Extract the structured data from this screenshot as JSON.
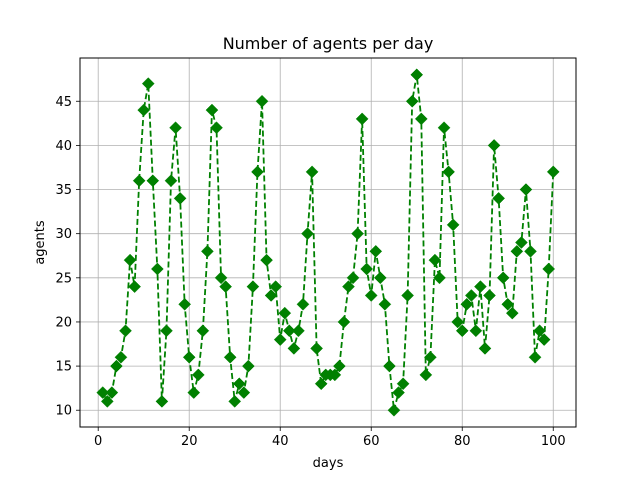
{
  "chart_data": {
    "type": "line",
    "title": "Number of agents per day",
    "xlabel": "days",
    "ylabel": "agents",
    "xlim": [
      -4,
      105
    ],
    "ylim": [
      8.1,
      49.9
    ],
    "grid": true,
    "line_style": "dashed",
    "marker": "diamond",
    "colors": {
      "series": "#008000",
      "grid": "#b0b0b0",
      "axes": "#000000"
    },
    "x_ticks": [
      0,
      20,
      40,
      60,
      80,
      100
    ],
    "y_ticks": [
      10,
      15,
      20,
      25,
      30,
      35,
      40,
      45
    ],
    "x_tick_labels": [
      "0",
      "20",
      "40",
      "60",
      "80",
      "100"
    ],
    "y_tick_labels": [
      "10",
      "15",
      "20",
      "25",
      "30",
      "35",
      "40",
      "45"
    ],
    "series": [
      {
        "x": [
          1,
          2,
          3,
          4,
          5,
          6,
          7,
          8,
          9,
          10,
          11,
          12,
          13,
          14,
          15,
          16,
          17,
          18,
          19,
          20,
          21,
          22,
          23,
          24,
          25,
          26,
          27,
          28,
          29,
          30,
          31,
          32,
          33,
          34,
          35,
          36,
          37,
          38,
          39,
          40,
          41,
          42,
          43,
          44,
          45,
          46,
          47,
          48,
          49,
          50,
          51,
          52,
          53,
          54,
          55,
          56,
          57,
          58,
          59,
          60,
          61,
          62,
          63,
          64,
          65,
          66,
          67,
          68,
          69,
          70,
          71,
          72,
          73,
          74,
          75,
          76,
          77,
          78,
          79,
          80,
          81,
          82,
          83,
          84,
          85,
          86,
          87,
          88,
          89,
          90,
          91,
          92,
          93,
          94,
          95,
          96,
          97,
          98,
          99,
          100
        ],
        "values": [
          12,
          11,
          12,
          15,
          16,
          19,
          27,
          24,
          36,
          44,
          47,
          36,
          26,
          11,
          19,
          36,
          42,
          34,
          22,
          16,
          12,
          14,
          19,
          28,
          44,
          42,
          25,
          24,
          16,
          11,
          13,
          12,
          15,
          24,
          37,
          45,
          27,
          23,
          24,
          18,
          21,
          19,
          17,
          19,
          22,
          30,
          37,
          17,
          13,
          14,
          14,
          14,
          15,
          20,
          24,
          25,
          30,
          43,
          26,
          23,
          28,
          25,
          22,
          15,
          10,
          12,
          13,
          23,
          45,
          48,
          43,
          14,
          16,
          27,
          25,
          42,
          37,
          31,
          20,
          19,
          22,
          23,
          19,
          24,
          17,
          23,
          40,
          34,
          25,
          22,
          21,
          28,
          29,
          35,
          28,
          16,
          19,
          18,
          26,
          37
        ]
      }
    ]
  }
}
